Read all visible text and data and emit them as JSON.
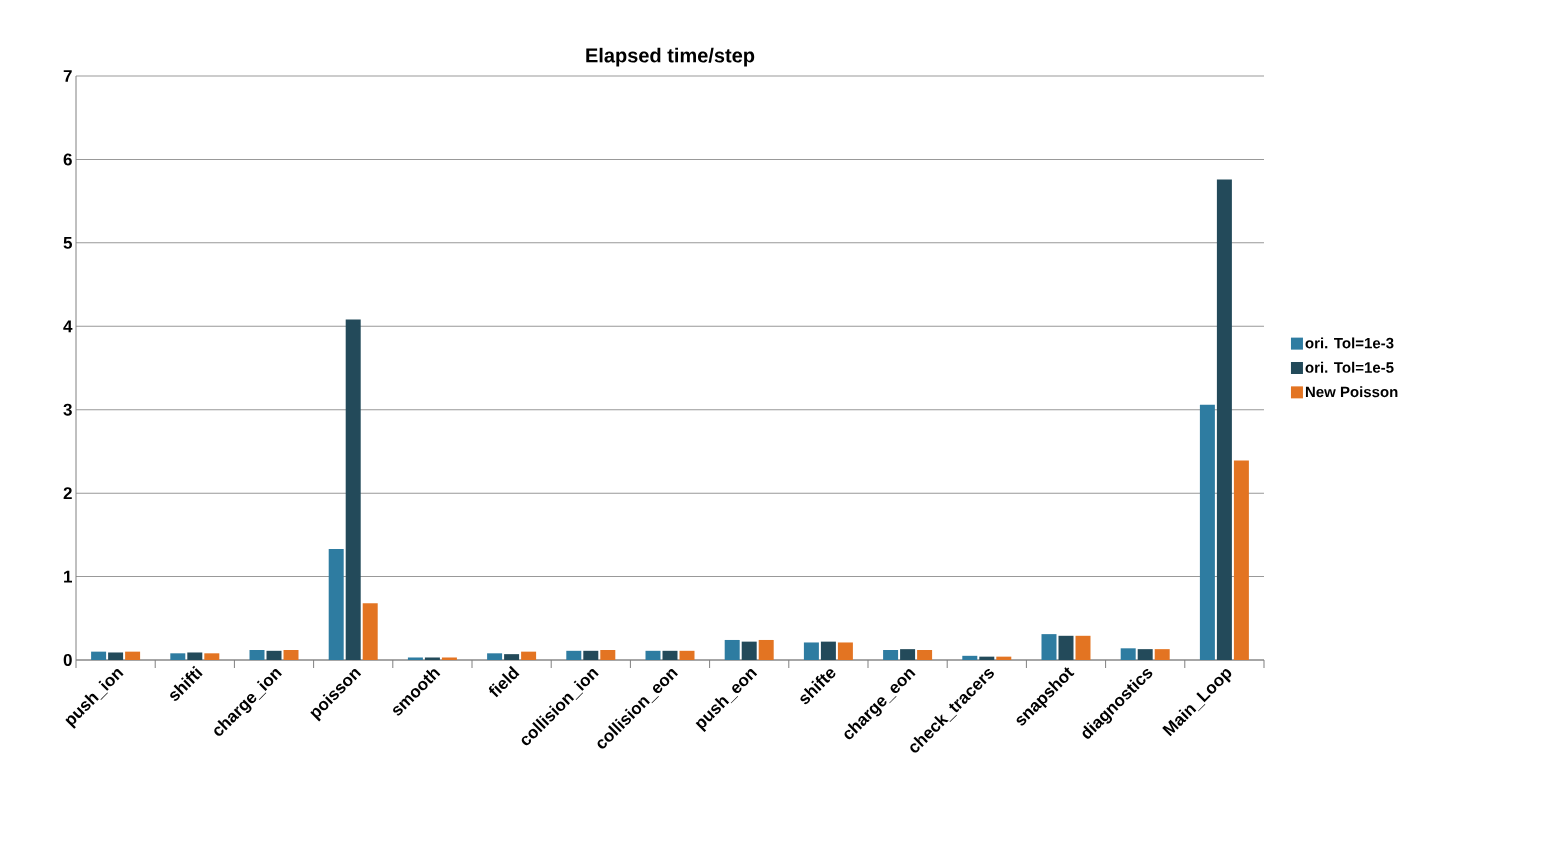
{
  "chart_data": {
    "type": "bar",
    "title": "Elapsed time/step",
    "categories": [
      "push_ion",
      "shifti",
      "charge_ion",
      "poisson",
      "smooth",
      "field",
      "collision_ion",
      "collision_eon",
      "push_eon",
      "shifte",
      "charge_eon",
      "check_tracers",
      "snapshot",
      "diagnostics",
      "Main_Loop"
    ],
    "series": [
      {
        "name": "ori. Tol=1e-3",
        "color": "#2e7ca1",
        "values": [
          0.1,
          0.08,
          0.12,
          1.33,
          0.03,
          0.08,
          0.11,
          0.11,
          0.24,
          0.21,
          0.12,
          0.05,
          0.31,
          0.14,
          3.06
        ]
      },
      {
        "name": "ori. Tol=1e-5",
        "color": "#234a5a",
        "values": [
          0.09,
          0.09,
          0.11,
          4.08,
          0.03,
          0.07,
          0.11,
          0.11,
          0.22,
          0.22,
          0.13,
          0.04,
          0.29,
          0.13,
          5.76
        ]
      },
      {
        "name": "New Poisson",
        "color": "#e37422",
        "values": [
          0.1,
          0.08,
          0.12,
          0.68,
          0.03,
          0.1,
          0.12,
          0.11,
          0.24,
          0.21,
          0.12,
          0.04,
          0.29,
          0.13,
          2.39
        ]
      }
    ],
    "ylim": [
      0,
      7
    ],
    "yticks": [
      0,
      1,
      2,
      3,
      4,
      5,
      6,
      7
    ],
    "grid": "y",
    "legend": "right"
  }
}
